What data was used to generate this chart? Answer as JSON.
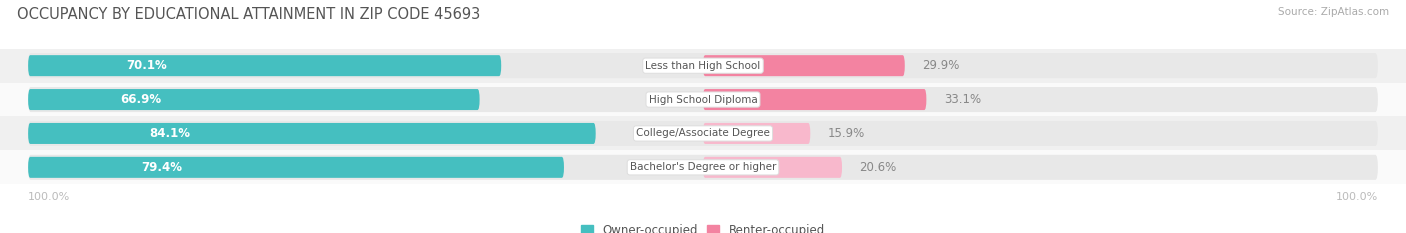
{
  "title": "OCCUPANCY BY EDUCATIONAL ATTAINMENT IN ZIP CODE 45693",
  "source": "Source: ZipAtlas.com",
  "categories": [
    "Less than High School",
    "High School Diploma",
    "College/Associate Degree",
    "Bachelor's Degree or higher"
  ],
  "owner_pct": [
    70.1,
    66.9,
    84.1,
    79.4
  ],
  "renter_pct": [
    29.9,
    33.1,
    15.9,
    20.6
  ],
  "owner_color": "#45bfc0",
  "renter_color": "#f383a1",
  "renter_color_light": "#f8b8cc",
  "pill_bg_color": "#e8e8e8",
  "row_bg_colors": [
    "#f0f0f0",
    "#fafafa",
    "#f0f0f0",
    "#fafafa"
  ],
  "label_color_owner": "#ffffff",
  "category_label_color": "#555555",
  "axis_label_color": "#bbbbbb",
  "title_color": "#555555",
  "legend_owner": "Owner-occupied",
  "legend_renter": "Renter-occupied",
  "figsize": [
    14.06,
    2.33
  ],
  "dpi": 100
}
